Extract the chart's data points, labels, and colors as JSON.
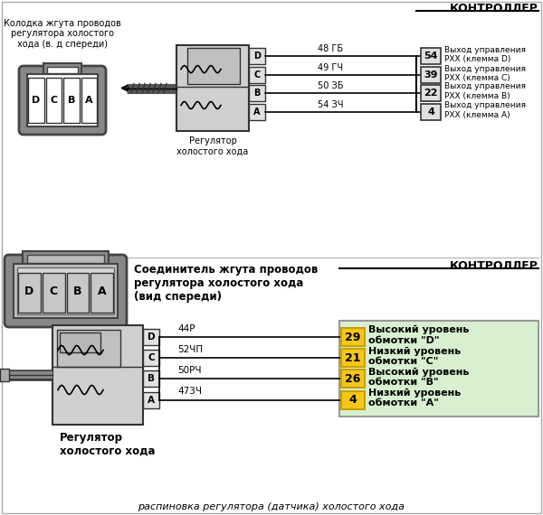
{
  "bg_color": "#ffffff",
  "border_color": "#aaaaaa",
  "title_text": "распиновка регулятора (датчика) холостого хода",
  "top": {
    "conn_label": "Колодка жгута проводов\nрегулятора холостого\nхода (в. д спереди)",
    "pins": [
      "D",
      "C",
      "B",
      "A"
    ],
    "controller_label": "КОНТРОЛЛЕР",
    "reg_label": "Регулятор\nхолостого хода",
    "wires": [
      {
        "label": "48 ГБ",
        "num": "54",
        "desc": "Выход управления\nРХХ (клемма D)"
      },
      {
        "label": "49 ГЧ",
        "num": "39",
        "desc": "Выход управления\nРХХ (клемма С)"
      },
      {
        "label": "50 ЗБ",
        "num": "22",
        "desc": "Выход управления\nРХХ (клемма В)"
      },
      {
        "label": "54 ЗЧ",
        "num": "4",
        "desc": "Выход управления\nРХХ (клемма А)"
      }
    ]
  },
  "bottom": {
    "conn_label": "Соединитель жгута проводов\nрегулятора холостого хода\n(вид спереди)",
    "pins": [
      "D",
      "C",
      "B",
      "A"
    ],
    "controller_label": "КОНТРОЛЛЕР",
    "reg_label": "Регулятор\nхолостого хода",
    "green_bg": "#d8f0d0",
    "yellow_bg": "#f5c518",
    "wires": [
      {
        "label": "44Р",
        "num": "29",
        "desc": "Высокий уровень\nобмотки \"D\""
      },
      {
        "label": "52ЧП",
        "num": "21",
        "desc": "Низкий уровень\nобмотки \"С\""
      },
      {
        "label": "50РЧ",
        "num": "26",
        "desc": "Высокий уровень\nобмотки \"В\""
      },
      {
        "label": "473Ч",
        "num": "4",
        "desc": "Низкий уровень\nобмотки \"А\""
      }
    ]
  }
}
